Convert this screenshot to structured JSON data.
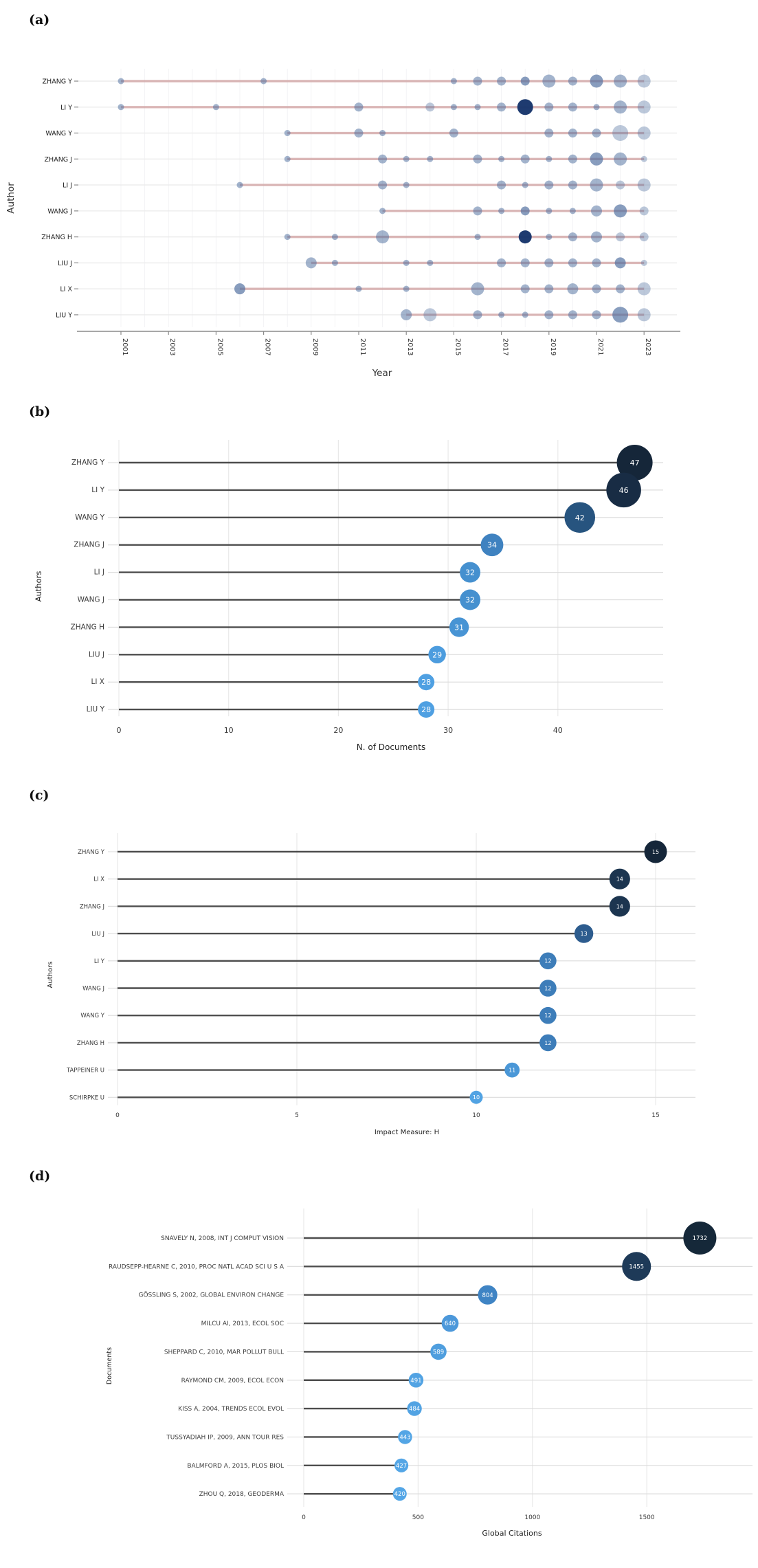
{
  "panel_tags": {
    "a": "(a)",
    "b": "(b)",
    "c": "(c)",
    "d": "(d)"
  },
  "chart_data": [
    {
      "type": "scatter",
      "panel": "a",
      "subtype": "authors-production-over-time",
      "xlabel": "Year",
      "ylabel": "Author",
      "x_ticks": [
        2001,
        2003,
        2005,
        2007,
        2009,
        2011,
        2013,
        2015,
        2017,
        2019,
        2021,
        2023
      ],
      "xlim": [
        2000,
        2024.4
      ],
      "timeline_color": "#c98f8f",
      "dot_color": "#4f6f9f",
      "navy_color": "#17356b",
      "grid_on": false,
      "series": [
        {
          "author": "ZHANG Y",
          "first_year": 2001,
          "last_year": 2023,
          "points": [
            [
              2001,
              "s",
              "n"
            ],
            [
              2007,
              "s",
              "n"
            ],
            [
              2015,
              "s",
              "n"
            ],
            [
              2016,
              "m",
              "n"
            ],
            [
              2017,
              "m",
              "n"
            ],
            [
              2018,
              "m",
              "d"
            ],
            [
              2019,
              "l",
              "n"
            ],
            [
              2020,
              "m",
              "n"
            ],
            [
              2021,
              "l",
              "d"
            ],
            [
              2022,
              "l",
              "n"
            ],
            [
              2023,
              "l",
              "l"
            ]
          ]
        },
        {
          "author": "LI Y",
          "first_year": 2001,
          "last_year": 2023,
          "points": [
            [
              2001,
              "s",
              "n"
            ],
            [
              2005,
              "s",
              "n"
            ],
            [
              2011,
              "m",
              "n"
            ],
            [
              2014,
              "m",
              "l"
            ],
            [
              2015,
              "s",
              "n"
            ],
            [
              2016,
              "s",
              "n"
            ],
            [
              2017,
              "m",
              "n"
            ],
            [
              2018,
              "xl",
              "navy"
            ],
            [
              2019,
              "m",
              "n"
            ],
            [
              2020,
              "m",
              "n"
            ],
            [
              2021,
              "s",
              "n"
            ],
            [
              2022,
              "l",
              "n"
            ],
            [
              2023,
              "l",
              "l"
            ]
          ]
        },
        {
          "author": "WANG Y",
          "first_year": 2008,
          "last_year": 2023,
          "points": [
            [
              2008,
              "s",
              "n"
            ],
            [
              2011,
              "m",
              "n"
            ],
            [
              2012,
              "s",
              "n"
            ],
            [
              2015,
              "m",
              "n"
            ],
            [
              2019,
              "m",
              "n"
            ],
            [
              2020,
              "m",
              "n"
            ],
            [
              2021,
              "m",
              "n"
            ],
            [
              2022,
              "xl",
              "l"
            ],
            [
              2023,
              "l",
              "l"
            ]
          ]
        },
        {
          "author": "ZHANG J",
          "first_year": 2008,
          "last_year": 2023,
          "points": [
            [
              2008,
              "s",
              "n"
            ],
            [
              2012,
              "m",
              "n"
            ],
            [
              2013,
              "s",
              "n"
            ],
            [
              2014,
              "s",
              "n"
            ],
            [
              2016,
              "m",
              "n"
            ],
            [
              2017,
              "s",
              "n"
            ],
            [
              2018,
              "m",
              "n"
            ],
            [
              2019,
              "s",
              "n"
            ],
            [
              2020,
              "m",
              "n"
            ],
            [
              2021,
              "l",
              "d"
            ],
            [
              2022,
              "l",
              "n"
            ],
            [
              2023,
              "s",
              "l"
            ]
          ]
        },
        {
          "author": "LI J",
          "first_year": 2006,
          "last_year": 2023,
          "points": [
            [
              2006,
              "s",
              "n"
            ],
            [
              2012,
              "m",
              "n"
            ],
            [
              2013,
              "s",
              "n"
            ],
            [
              2017,
              "m",
              "n"
            ],
            [
              2018,
              "s",
              "n"
            ],
            [
              2019,
              "m",
              "n"
            ],
            [
              2020,
              "m",
              "n"
            ],
            [
              2021,
              "l",
              "n"
            ],
            [
              2022,
              "m",
              "l"
            ],
            [
              2023,
              "l",
              "l"
            ]
          ]
        },
        {
          "author": "WANG J",
          "first_year": 2012,
          "last_year": 2023,
          "points": [
            [
              2012,
              "s",
              "n"
            ],
            [
              2016,
              "m",
              "n"
            ],
            [
              2017,
              "s",
              "n"
            ],
            [
              2018,
              "m",
              "d"
            ],
            [
              2019,
              "s",
              "n"
            ],
            [
              2020,
              "s",
              "n"
            ],
            [
              2021,
              "ml",
              "n"
            ],
            [
              2022,
              "l",
              "d"
            ],
            [
              2023,
              "m",
              "l"
            ]
          ]
        },
        {
          "author": "ZHANG H",
          "first_year": 2008,
          "last_year": 2023,
          "points": [
            [
              2008,
              "s",
              "n"
            ],
            [
              2010,
              "s",
              "n"
            ],
            [
              2012,
              "l",
              "n"
            ],
            [
              2016,
              "s",
              "n"
            ],
            [
              2018,
              "l",
              "navy"
            ],
            [
              2019,
              "s",
              "n"
            ],
            [
              2020,
              "m",
              "n"
            ],
            [
              2021,
              "ml",
              "n"
            ],
            [
              2022,
              "m",
              "l"
            ],
            [
              2023,
              "m",
              "l"
            ]
          ]
        },
        {
          "author": "LIU J",
          "first_year": 2009,
          "last_year": 2023,
          "points": [
            [
              2009,
              "ml",
              "n"
            ],
            [
              2010,
              "s",
              "n"
            ],
            [
              2013,
              "s",
              "n"
            ],
            [
              2014,
              "s",
              "n"
            ],
            [
              2017,
              "m",
              "n"
            ],
            [
              2018,
              "m",
              "n"
            ],
            [
              2019,
              "m",
              "n"
            ],
            [
              2020,
              "m",
              "n"
            ],
            [
              2021,
              "m",
              "n"
            ],
            [
              2022,
              "ml",
              "d"
            ],
            [
              2023,
              "s",
              "l"
            ]
          ]
        },
        {
          "author": "LI X",
          "first_year": 2006,
          "last_year": 2023,
          "points": [
            [
              2006,
              "ml",
              "d"
            ],
            [
              2011,
              "s",
              "n"
            ],
            [
              2013,
              "s",
              "n"
            ],
            [
              2016,
              "l",
              "n"
            ],
            [
              2018,
              "m",
              "n"
            ],
            [
              2019,
              "m",
              "n"
            ],
            [
              2020,
              "ml",
              "n"
            ],
            [
              2021,
              "m",
              "n"
            ],
            [
              2022,
              "m",
              "n"
            ],
            [
              2023,
              "l",
              "l"
            ]
          ]
        },
        {
          "author": "LIU Y",
          "first_year": 2013,
          "last_year": 2023,
          "points": [
            [
              2013,
              "ml",
              "n"
            ],
            [
              2014,
              "l",
              "l"
            ],
            [
              2016,
              "m",
              "n"
            ],
            [
              2017,
              "s",
              "n"
            ],
            [
              2018,
              "s",
              "n"
            ],
            [
              2019,
              "m",
              "n"
            ],
            [
              2020,
              "m",
              "n"
            ],
            [
              2021,
              "m",
              "n"
            ],
            [
              2022,
              "xl",
              "d"
            ],
            [
              2023,
              "l",
              "l"
            ]
          ]
        }
      ]
    },
    {
      "type": "lollipop",
      "panel": "b",
      "xlabel": "N. of Documents",
      "ylabel": "Authors",
      "x_ticks": [
        0,
        10,
        20,
        30,
        40
      ],
      "xlim": [
        0,
        49.5
      ],
      "categories": [
        "ZHANG Y",
        "LI Y",
        "WANG Y",
        "ZHANG J",
        "LI J",
        "WANG J",
        "ZHANG H",
        "LIU J",
        "LI X",
        "LIU Y"
      ],
      "values": [
        47,
        46,
        42,
        34,
        32,
        32,
        31,
        29,
        28,
        28
      ],
      "colors": [
        "#152639",
        "#182c44",
        "#27547f",
        "#3f82c0",
        "#4590cf",
        "#4590cf",
        "#4894d4",
        "#4c9cde",
        "#4fa0e2",
        "#4fa0e2"
      ],
      "stem_color": "#4d4d4d",
      "grid_on": true,
      "legend": "none"
    },
    {
      "type": "lollipop",
      "panel": "c",
      "xlabel": "Impact Measure: H",
      "ylabel": "Authors",
      "x_ticks": [
        0,
        5,
        10,
        15
      ],
      "xlim": [
        0,
        16.1
      ],
      "categories": [
        "ZHANG Y",
        "LI X",
        "ZHANG J",
        "LIU J",
        "LI Y",
        "WANG J",
        "WANG Y",
        "ZHANG H",
        "TAPPEINER U",
        "SCHIRPKE U"
      ],
      "values": [
        15,
        14,
        14,
        13,
        12,
        12,
        12,
        12,
        11,
        10
      ],
      "colors": [
        "#152639",
        "#1c3550",
        "#1c3550",
        "#2d5c8e",
        "#3d7db9",
        "#3d7db9",
        "#3d7db9",
        "#3d7db9",
        "#4a97d7",
        "#52a3e3"
      ],
      "stem_color": "#4d4d4d",
      "grid_on": true,
      "legend": "none"
    },
    {
      "type": "lollipop",
      "panel": "d",
      "xlabel": "Global Citations",
      "ylabel": "Documents",
      "x_ticks": [
        0,
        500,
        1000,
        1500
      ],
      "xlim": [
        0,
        1962
      ],
      "categories": [
        "SNAVELY N, 2008, INT J COMPUT VISION",
        "RAUDSEPP-HEARNE C, 2010, PROC NATL ACAD SCI U S A",
        "GÖSSLING S, 2002, GLOBAL ENVIRON CHANGE",
        "MILCU AI, 2013, ECOL SOC",
        "SHEPPARD C, 2010, MAR POLLUT BULL",
        "RAYMOND CM, 2009, ECOL ECON",
        "KISS A, 2004, TRENDS ECOL EVOL",
        "TUSSYADIAH IP, 2009, ANN TOUR RES",
        "BALMFORD A, 2015, PLOS BIOL",
        "ZHOU Q, 2018, GEODERMA"
      ],
      "values": [
        1732,
        1455,
        804,
        640,
        589,
        491,
        484,
        443,
        427,
        420
      ],
      "colors": [
        "#152839",
        "#1e3a58",
        "#3f84c4",
        "#4c98da",
        "#4f9ede",
        "#52a3e3",
        "#52a3e3",
        "#53a5e5",
        "#54a6e6",
        "#54a6e6"
      ],
      "stem_color": "#4d4d4d",
      "grid_on": true,
      "legend": "none"
    }
  ]
}
